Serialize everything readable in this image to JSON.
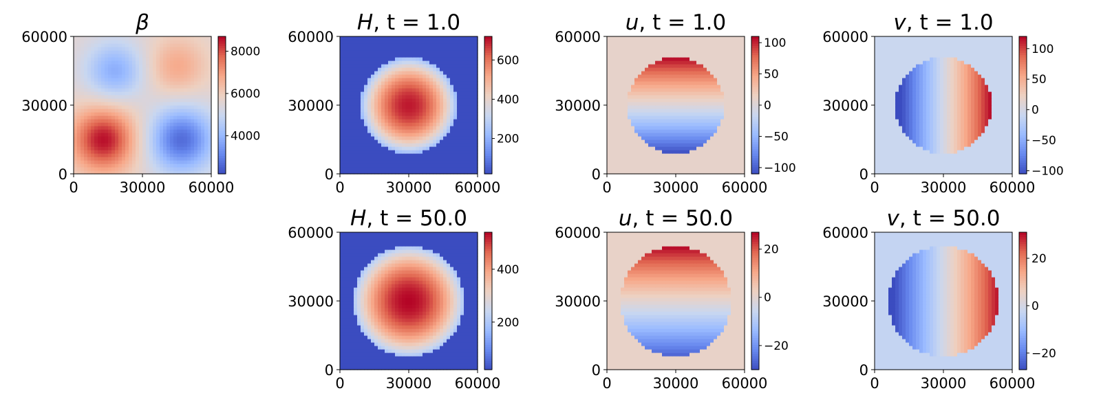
{
  "colormap": "coolwarm",
  "colormap_stops": [
    "#3b4cc0",
    "#6788ee",
    "#9abbff",
    "#c9d7f0",
    "#edd1c2",
    "#f7a889",
    "#e26952",
    "#b40426"
  ],
  "chart_data": [
    {
      "id": "beta",
      "type": "heatmap",
      "title_main": "β",
      "title_time": "",
      "field": "beta",
      "xlim": [
        0,
        60000
      ],
      "ylim": [
        0,
        60000
      ],
      "xticks": [
        "0",
        "30000",
        "60000"
      ],
      "yticks": [
        "0",
        "30000",
        "60000"
      ],
      "clim": [
        2200,
        8700
      ],
      "cbar_ticks": [
        {
          "value": 4000,
          "label": "4000"
        },
        {
          "value": 6000,
          "label": "6000"
        },
        {
          "value": 8000,
          "label": "8000"
        }
      ],
      "description_values": {
        "max": 8600,
        "min": 2300,
        "mean": 5400
      }
    },
    {
      "id": "H_t1",
      "type": "heatmap",
      "title_main": "H",
      "title_time": "t = 1.0",
      "field": "H",
      "time": 1.0,
      "radius": 21000,
      "xlim": [
        0,
        60000
      ],
      "ylim": [
        0,
        60000
      ],
      "xticks": [
        "0",
        "30000",
        "60000"
      ],
      "yticks": [
        "0",
        "30000",
        "60000"
      ],
      "clim": [
        20,
        720
      ],
      "peak": 700,
      "edge": 230,
      "outside": 20,
      "cbar_ticks": [
        {
          "value": 200,
          "label": "200"
        },
        {
          "value": 400,
          "label": "400"
        },
        {
          "value": 600,
          "label": "600"
        }
      ]
    },
    {
      "id": "u_t1",
      "type": "heatmap",
      "title_main": "u",
      "title_time": "t = 1.0",
      "field": "u",
      "time": 1.0,
      "radius": 21000,
      "amplitude": 110,
      "xlim": [
        0,
        60000
      ],
      "ylim": [
        0,
        60000
      ],
      "xticks": [
        "0",
        "30000",
        "60000"
      ],
      "yticks": [
        "0",
        "30000",
        "60000"
      ],
      "clim": [
        -110,
        110
      ],
      "outside": 10,
      "cbar_ticks": [
        {
          "value": -100,
          "label": "−100"
        },
        {
          "value": -50,
          "label": "−50"
        },
        {
          "value": 0,
          "label": "0"
        },
        {
          "value": 50,
          "label": "50"
        },
        {
          "value": 100,
          "label": "100"
        }
      ]
    },
    {
      "id": "v_t1",
      "type": "heatmap",
      "title_main": "v",
      "title_time": "t = 1.0",
      "field": "v",
      "time": 1.0,
      "radius": 21000,
      "amplitude": 120,
      "xlim": [
        0,
        60000
      ],
      "ylim": [
        0,
        60000
      ],
      "xticks": [
        "0",
        "30000",
        "60000"
      ],
      "yticks": [
        "0",
        "30000",
        "60000"
      ],
      "clim": [
        -105,
        120
      ],
      "outside": -8,
      "cbar_ticks": [
        {
          "value": -100,
          "label": "−100"
        },
        {
          "value": -50,
          "label": "−50"
        },
        {
          "value": 0,
          "label": "0"
        },
        {
          "value": 50,
          "label": "50"
        },
        {
          "value": 100,
          "label": "100"
        }
      ]
    },
    {
      "id": "H_t50",
      "type": "heatmap",
      "title_main": "H",
      "title_time": "t = 50.0",
      "field": "H",
      "time": 50.0,
      "radius": 24000,
      "xlim": [
        0,
        60000
      ],
      "ylim": [
        0,
        60000
      ],
      "xticks": [
        "0",
        "30000",
        "60000"
      ],
      "yticks": [
        "0",
        "30000",
        "60000"
      ],
      "clim": [
        20,
        540
      ],
      "peak": 540,
      "edge": 200,
      "outside": 20,
      "cbar_ticks": [
        {
          "value": 200,
          "label": "200"
        },
        {
          "value": 400,
          "label": "400"
        }
      ]
    },
    {
      "id": "u_t50",
      "type": "heatmap",
      "title_main": "u",
      "title_time": "t = 50.0",
      "field": "u",
      "time": 50.0,
      "radius": 24000,
      "amplitude": 27,
      "xlim": [
        0,
        60000
      ],
      "ylim": [
        0,
        60000
      ],
      "xticks": [
        "0",
        "30000",
        "60000"
      ],
      "yticks": [
        "0",
        "30000",
        "60000"
      ],
      "clim": [
        -30,
        27
      ],
      "outside": 1.5,
      "cbar_ticks": [
        {
          "value": -20,
          "label": "−20"
        },
        {
          "value": 0,
          "label": "0"
        },
        {
          "value": 20,
          "label": "20"
        }
      ]
    },
    {
      "id": "v_t50",
      "type": "heatmap",
      "title_main": "v",
      "title_time": "t = 50.0",
      "field": "v",
      "time": 50.0,
      "radius": 24000,
      "amplitude": 30,
      "xlim": [
        0,
        60000
      ],
      "ylim": [
        0,
        60000
      ],
      "xticks": [
        "0",
        "30000",
        "60000"
      ],
      "yticks": [
        "0",
        "30000",
        "60000"
      ],
      "clim": [
        -27,
        31
      ],
      "outside": -3,
      "cbar_ticks": [
        {
          "value": -20,
          "label": "−20"
        },
        {
          "value": 0,
          "label": "0"
        },
        {
          "value": 20,
          "label": "20"
        }
      ]
    }
  ]
}
